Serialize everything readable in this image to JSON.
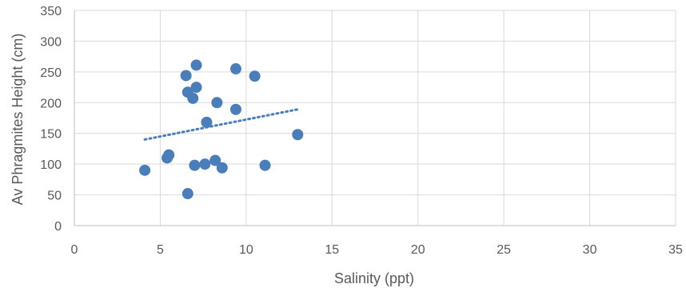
{
  "chart_data": {
    "type": "scatter",
    "xlabel": "Salinity (ppt)",
    "ylabel": "Av Phragmites Height (cm)",
    "xlim": [
      0,
      35
    ],
    "ylim": [
      0,
      350
    ],
    "x_ticks": [
      0,
      5,
      10,
      15,
      20,
      25,
      30,
      35
    ],
    "y_ticks": [
      0,
      50,
      100,
      150,
      200,
      250,
      300,
      350
    ],
    "grid": true,
    "legend": "none",
    "marker_color": "#4A7EBB",
    "trendline_color": "#4A7EBB",
    "gridline_color": "#D9D9D9",
    "series": [
      {
        "points": [
          {
            "x": 4.1,
            "y": 90
          },
          {
            "x": 5.4,
            "y": 110
          },
          {
            "x": 5.5,
            "y": 115
          },
          {
            "x": 6.5,
            "y": 244
          },
          {
            "x": 6.6,
            "y": 217
          },
          {
            "x": 6.6,
            "y": 52
          },
          {
            "x": 6.9,
            "y": 207
          },
          {
            "x": 7.0,
            "y": 98
          },
          {
            "x": 7.1,
            "y": 261
          },
          {
            "x": 7.1,
            "y": 225
          },
          {
            "x": 7.6,
            "y": 100
          },
          {
            "x": 7.7,
            "y": 168
          },
          {
            "x": 8.2,
            "y": 106
          },
          {
            "x": 8.3,
            "y": 200
          },
          {
            "x": 8.6,
            "y": 94
          },
          {
            "x": 9.4,
            "y": 255
          },
          {
            "x": 9.4,
            "y": 189
          },
          {
            "x": 10.5,
            "y": 243
          },
          {
            "x": 11.1,
            "y": 98
          },
          {
            "x": 13.0,
            "y": 148
          }
        ],
        "trendline": {
          "type": "linear",
          "dash": "dotted",
          "from": {
            "x": 4.1,
            "y": 140
          },
          "to": {
            "x": 13.0,
            "y": 189
          }
        }
      }
    ]
  }
}
